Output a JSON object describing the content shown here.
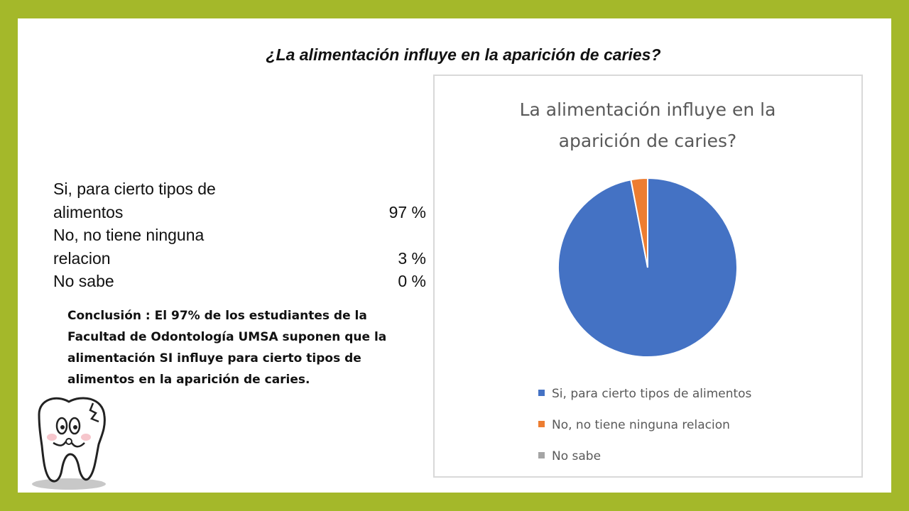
{
  "slide": {
    "title": "¿La alimentación influye en la aparición de caries?"
  },
  "table": {
    "rows": [
      {
        "label": "Si, para cierto tipos de alimentos",
        "value": "97 %"
      },
      {
        "label": "No, no tiene ninguna relacion",
        "value": "3 %"
      },
      {
        "label": "No sabe",
        "value": "0 %"
      }
    ]
  },
  "conclusion": "Conclusión : El 97% de los estudiantes de la Facultad de Odontología UMSA suponen que la alimentación SI influye para cierto tipos de alimentos en la aparición de caries.",
  "chart_data": {
    "type": "pie",
    "title_lines": [
      "La alimentación influye en la",
      "aparición de caries?"
    ],
    "categories": [
      "Si, para cierto tipos de alimentos",
      "No, no tiene ninguna relacion",
      "No sabe"
    ],
    "values": [
      97,
      3,
      0
    ],
    "colors": [
      "#4472c4",
      "#ed7d31",
      "#a5a5a5"
    ],
    "legend_position": "bottom"
  },
  "colors": {
    "frame": "#a4b82a",
    "background": "#ffffff"
  },
  "icons": {
    "mascot": "cartoon-tooth-icon"
  }
}
